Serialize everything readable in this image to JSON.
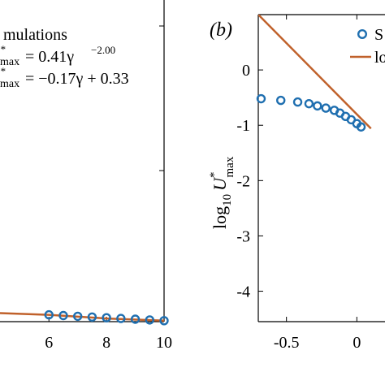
{
  "chart_data": [
    {
      "panel": "a",
      "type": "line",
      "title": "",
      "xlabel": "",
      "ylabel": "",
      "xlim": [
        4.3,
        10
      ],
      "x_ticks": [
        "6",
        "8",
        "10"
      ],
      "x_tick_values": [
        6,
        8,
        10
      ],
      "legend": {
        "placement": "top-left",
        "entries": [
          {
            "prefix": "",
            "text": "mulations",
            "kind": "marker"
          },
          {
            "prefix": "max",
            "text": "= 0.41γ",
            "sup": "−2.00",
            "kind": "line"
          },
          {
            "prefix": "max",
            "text": "= −0.17γ + 0.33",
            "sup": "",
            "kind": "line"
          }
        ]
      },
      "series": [
        {
          "name": "",
          "kind": "markers",
          "color": "#1f6fb0",
          "x": [
            6.0,
            6.5,
            7.0,
            7.5,
            8.0,
            8.5,
            9.0,
            9.5,
            10.0
          ],
          "y": [
            0.28,
            0.25,
            0.22,
            0.19,
            0.16,
            0.13,
            0.1,
            0.07,
            0.04
          ]
        },
        {
          "name": "",
          "kind": "line",
          "color": "#c0612b",
          "x": [
            4.3,
            6.0,
            8.0,
            10.0
          ],
          "y": [
            0.35,
            0.28,
            0.13,
            0.04
          ]
        }
      ]
    },
    {
      "panel": "b",
      "type": "line",
      "panel_label": "(b)",
      "title": "",
      "xlabel": "",
      "ylabel": "log",
      "ylabel_sub": "10",
      "ylabel_var": "U",
      "ylabel_sup": "*",
      "ylabel_subvar": "max",
      "xlim": [
        -0.7,
        0.2
      ],
      "ylim": [
        -4.55,
        1.0
      ],
      "x_ticks": [
        "-0.5",
        "0"
      ],
      "x_tick_values": [
        -0.5,
        0
      ],
      "y_ticks": [
        "0",
        "-1",
        "-2",
        "-3",
        "-4"
      ],
      "y_tick_values": [
        0,
        -1,
        -2,
        -3,
        -4
      ],
      "legend": {
        "placement": "top-right",
        "entries": [
          {
            "text": "S",
            "kind": "marker"
          },
          {
            "text": "lo",
            "kind": "line"
          }
        ]
      },
      "series": [
        {
          "name": "",
          "kind": "markers",
          "color": "#1f6fb0",
          "x": [
            -0.68,
            -0.54,
            -0.42,
            -0.34,
            -0.28,
            -0.22,
            -0.16,
            -0.12,
            -0.08,
            -0.04,
            0.0,
            0.03
          ],
          "y": [
            -0.52,
            -0.55,
            -0.58,
            -0.61,
            -0.65,
            -0.69,
            -0.73,
            -0.78,
            -0.84,
            -0.9,
            -0.97,
            -1.03
          ]
        },
        {
          "name": "",
          "kind": "line",
          "color": "#c0612b",
          "x": [
            -0.7,
            0.1
          ],
          "y": [
            1.0,
            -1.06
          ]
        }
      ]
    }
  ]
}
